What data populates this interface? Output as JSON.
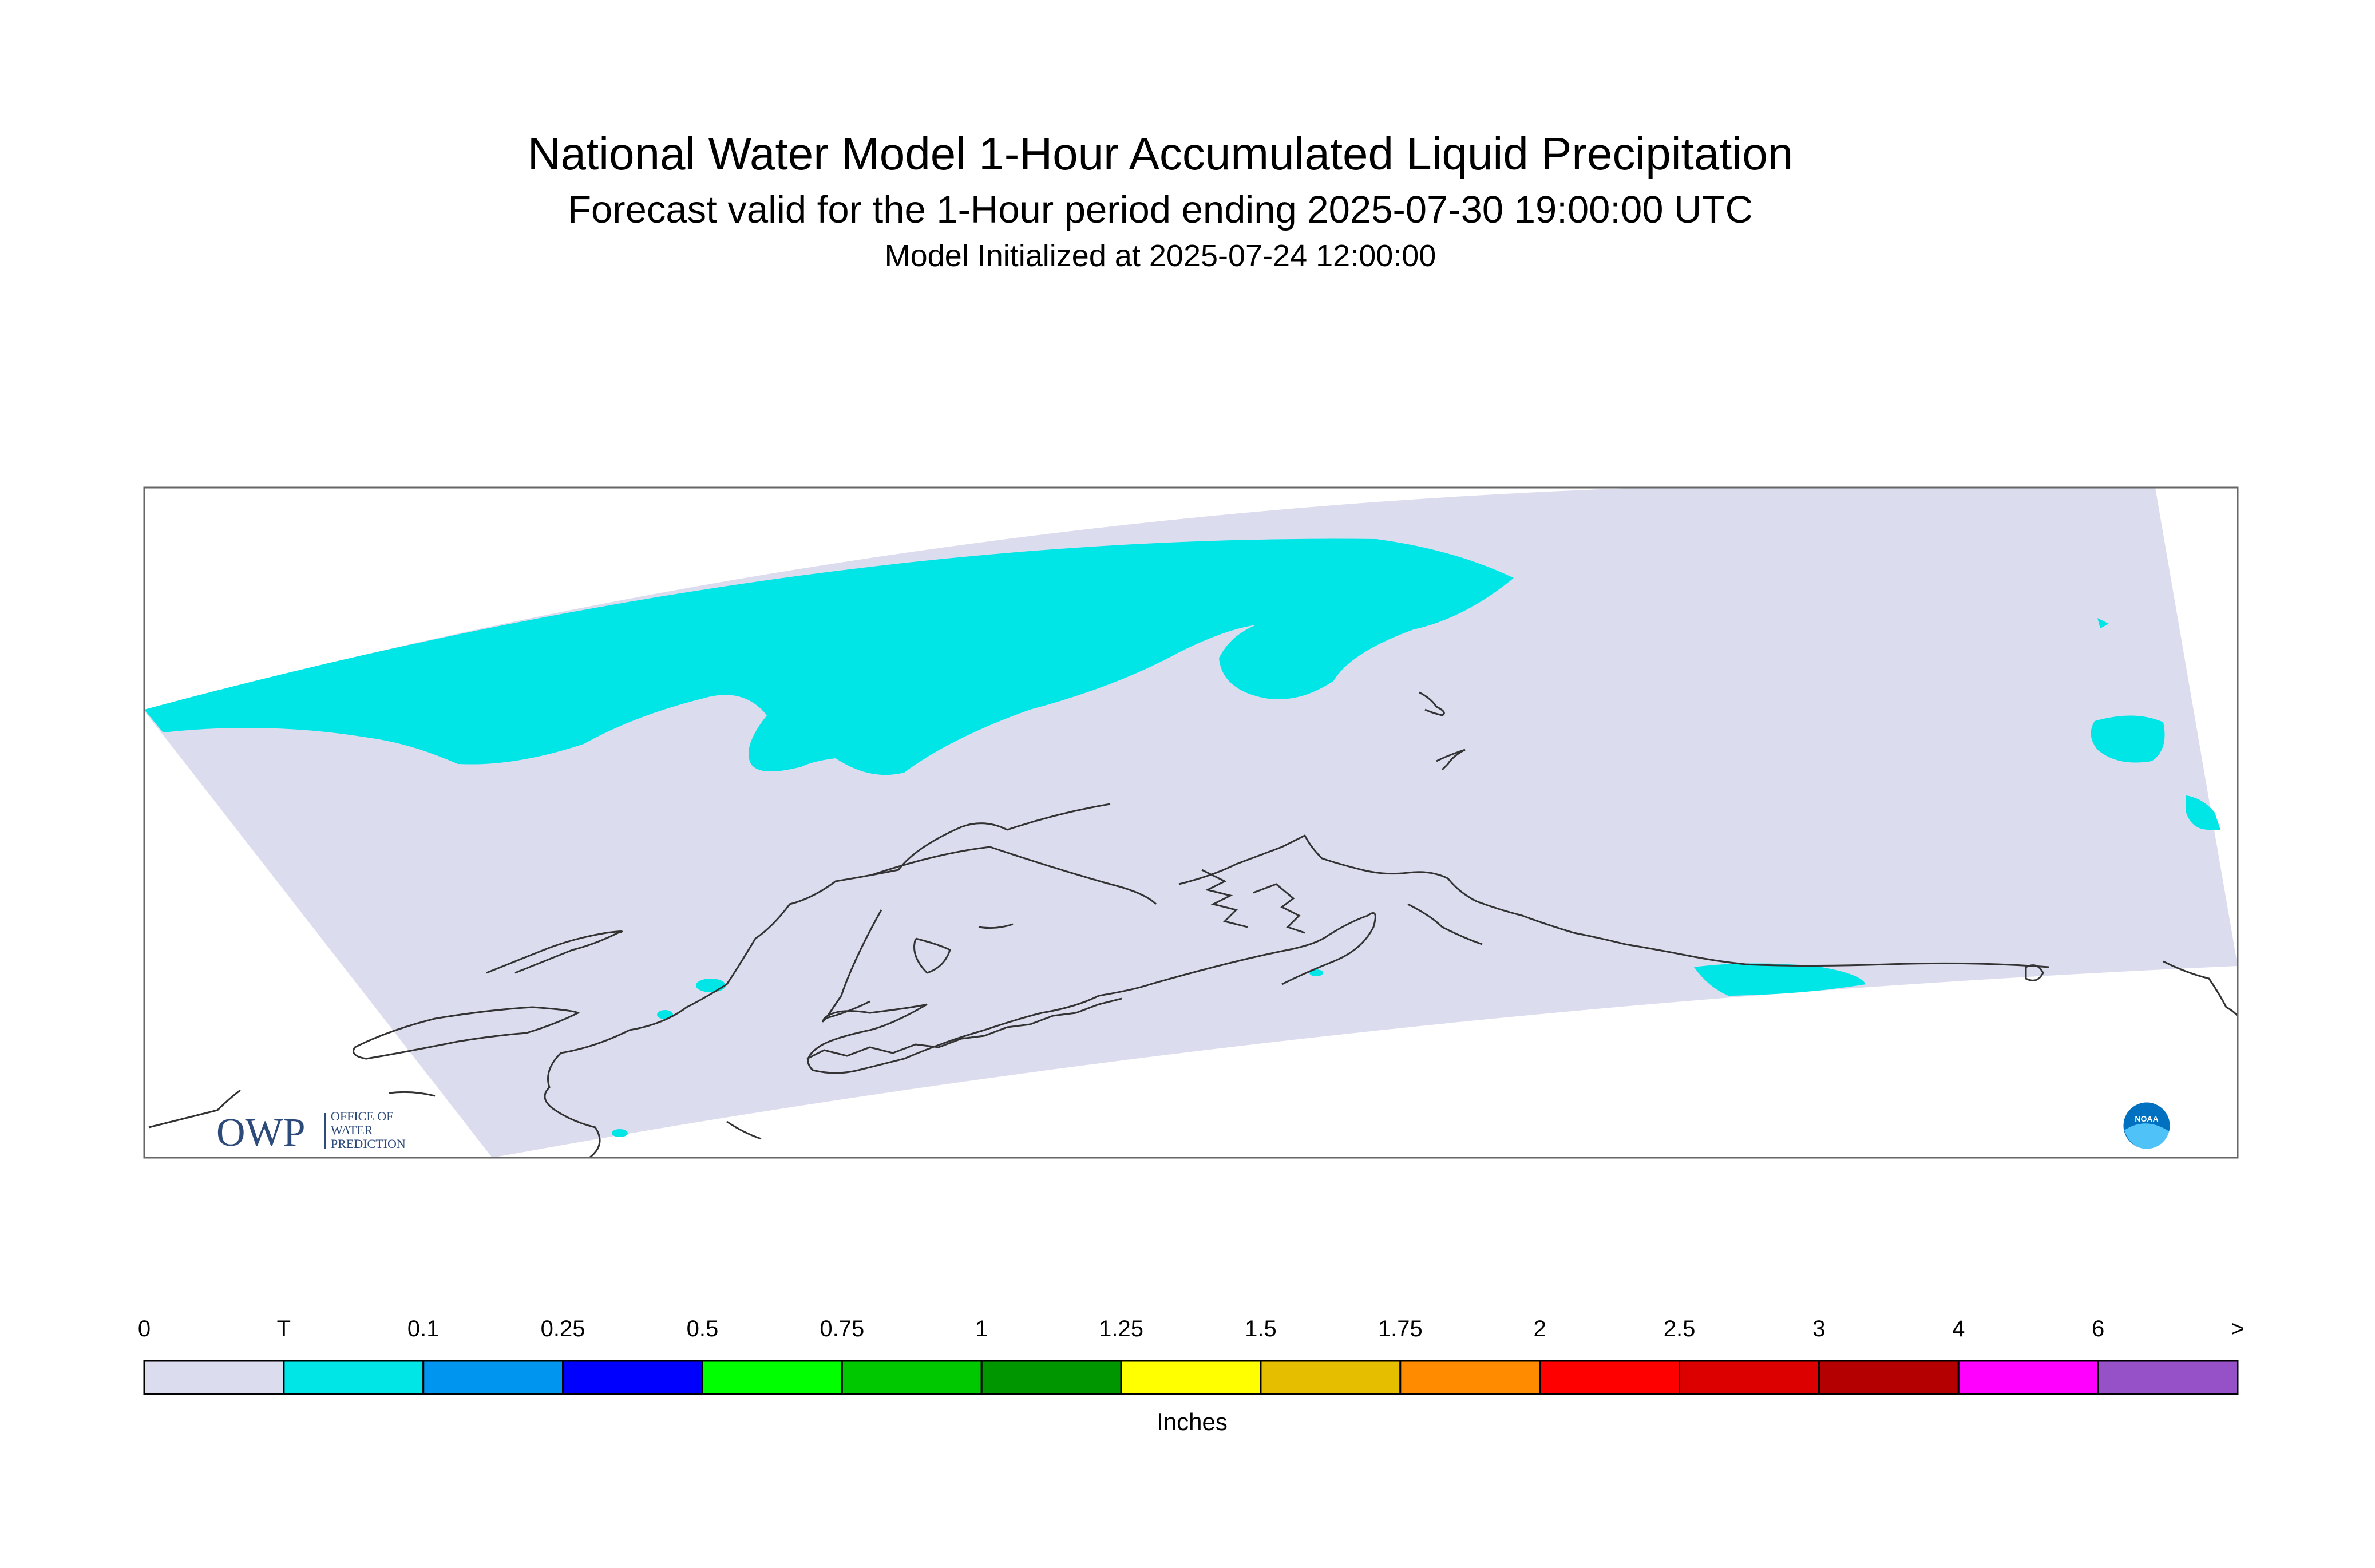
{
  "title": "National Water Model 1-Hour Accumulated Liquid Precipitation",
  "subtitle": "Forecast valid for the 1-Hour period ending 2025-07-30 19:00:00 UTC",
  "init_line": "Model Initialized at 2025-07-24 12:00:00",
  "logos": {
    "owp_letters": "OWP",
    "owp_text": [
      "OFFICE OF",
      "WATER",
      "PREDICTION"
    ],
    "noaa_text": "NOAA"
  },
  "legend": {
    "units": "Inches",
    "tick_labels": [
      "0",
      "T",
      "0.1",
      "0.25",
      "0.5",
      "0.75",
      "1",
      "1.25",
      "1.5",
      "1.75",
      "2",
      "2.5",
      "3",
      "4",
      "6",
      ">"
    ],
    "colors": [
      "#dcdcef",
      "#00e6e6",
      "#0096f0",
      "#0000ff",
      "#00ff00",
      "#00c800",
      "#009600",
      "#ffff00",
      "#e6be00",
      "#ff8c00",
      "#ff0000",
      "#dc0000",
      "#b40000",
      "#ff00ff",
      "#9650c8"
    ]
  },
  "map_colors": {
    "no_precip": "#dcdcef",
    "trace": "#00e6e6",
    "coastline": "#333333",
    "frame": "#666666"
  }
}
